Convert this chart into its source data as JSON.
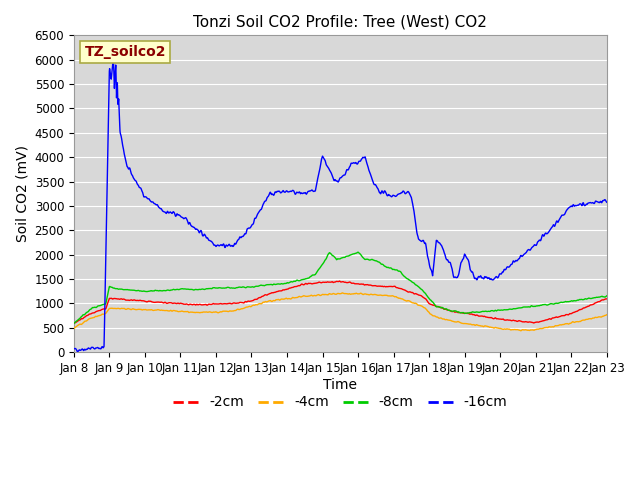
{
  "title": "Tonzi Soil CO2 Profile: Tree (West) CO2",
  "ylabel": "Soil CO2 (mV)",
  "xlabel": "Time",
  "watermark": "TZ_soilco2",
  "ylim": [
    0,
    6500
  ],
  "yticks": [
    0,
    500,
    1000,
    1500,
    2000,
    2500,
    3000,
    3500,
    4000,
    4500,
    5000,
    5500,
    6000,
    6500
  ],
  "x_labels": [
    "Jan 8",
    "Jan 9",
    "Jan 10",
    "Jan 11",
    "Jan 12",
    "Jan 13",
    "Jan 14",
    "Jan 15",
    "Jan 16",
    "Jan 17",
    "Jan 18",
    "Jan 19",
    "Jan 20",
    "Jan 21",
    "Jan 22",
    "Jan 23"
  ],
  "colors": {
    "-2cm": "#ff0000",
    "-4cm": "#ffaa00",
    "-8cm": "#00cc00",
    "-16cm": "#0000ff"
  },
  "background_color": "#d8d8d8",
  "title_fontsize": 11,
  "axis_label_fontsize": 10,
  "tick_fontsize": 8.5,
  "legend_fontsize": 10,
  "watermark_fontsize": 10
}
